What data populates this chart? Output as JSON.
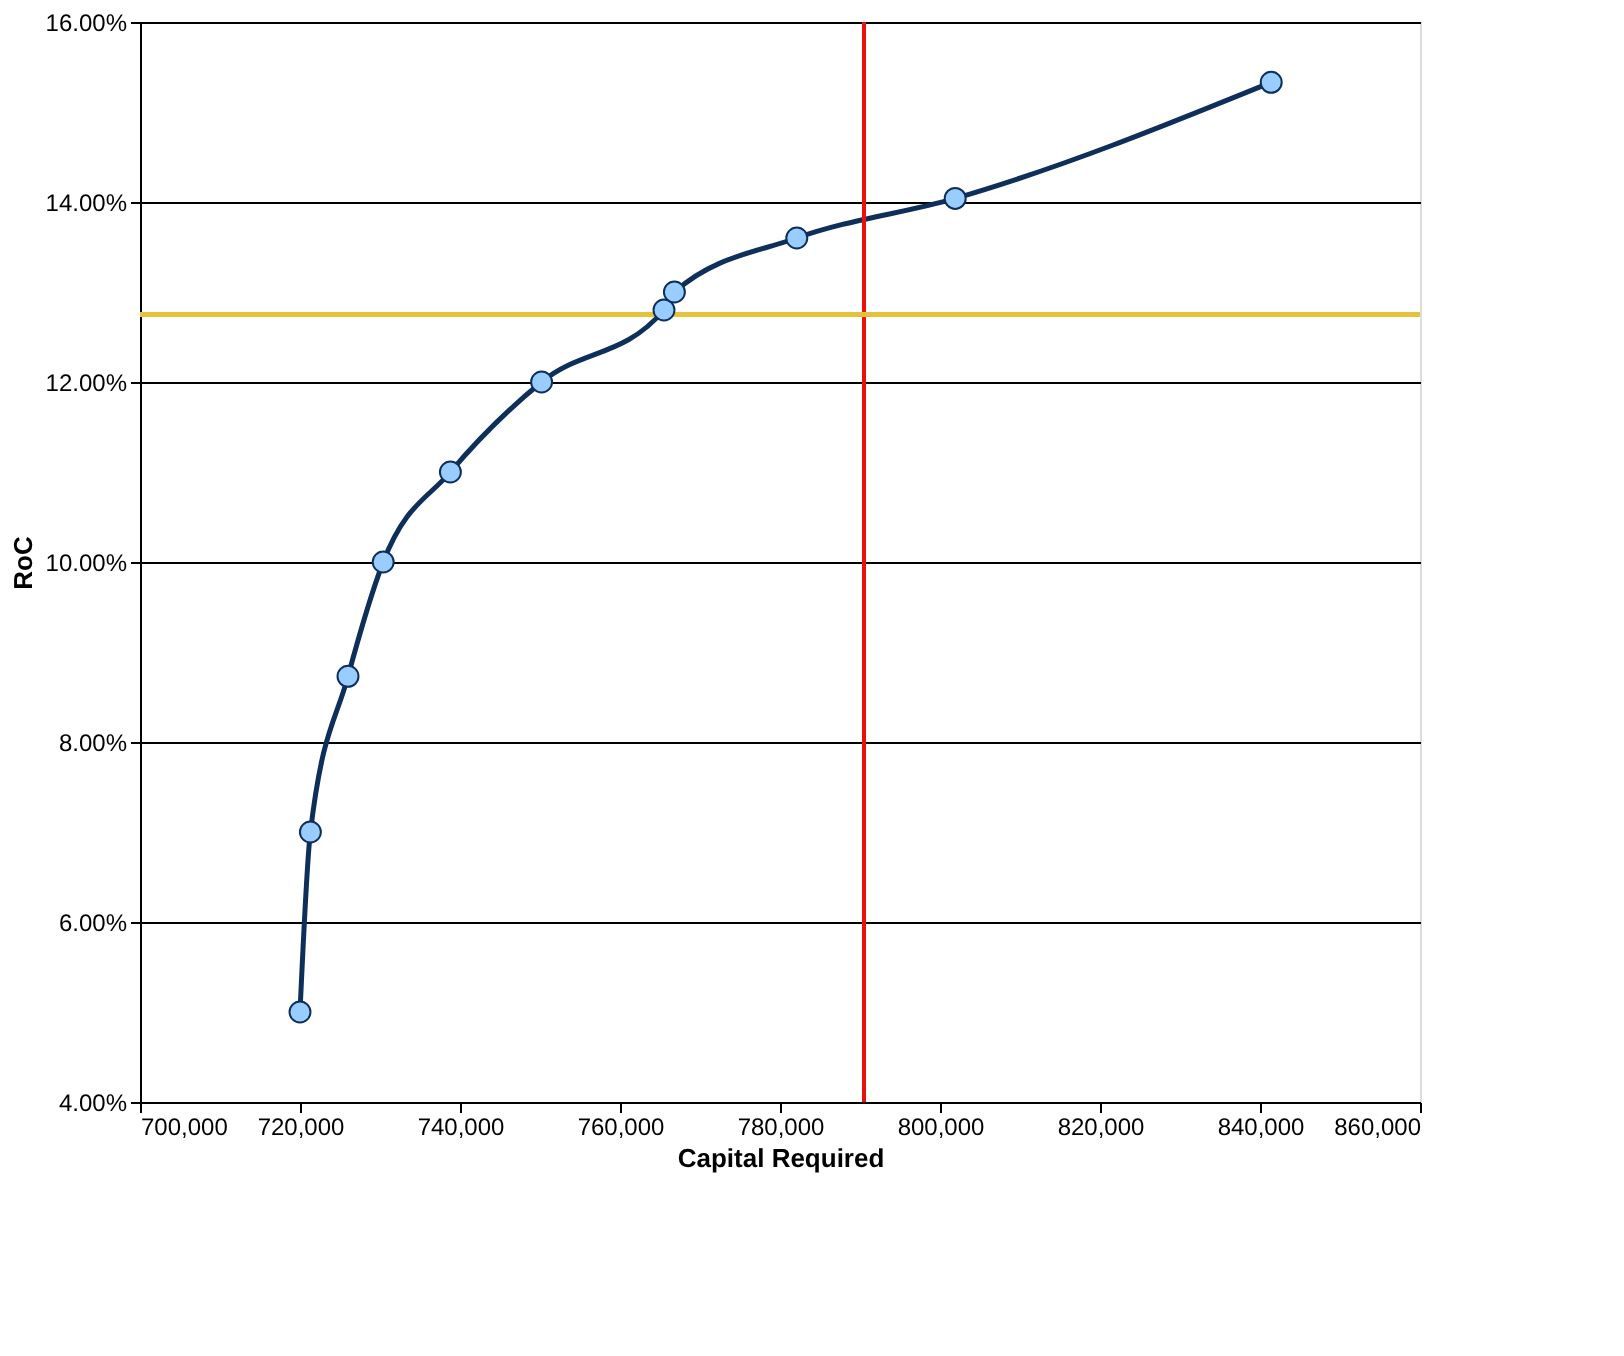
{
  "chart_data": {
    "type": "line",
    "xlabel": "Capital Required",
    "ylabel": "RoC",
    "x": [
      720000,
      721300,
      726000,
      730400,
      738800,
      750200,
      765500,
      766800,
      782100,
      801900,
      841400
    ],
    "series": [
      {
        "color": "#0d2f5a",
        "values": [
          5.0,
          7.0,
          8.73,
          10.0,
          11.0,
          12.0,
          12.8,
          13.0,
          13.6,
          14.04,
          15.33
        ]
      }
    ],
    "marker": "circle",
    "line_style": "solid",
    "grid": "y",
    "xlim": [
      700000,
      860000
    ],
    "xticks": [
      {
        "value": 700000,
        "label": "700,000"
      },
      {
        "value": 720000,
        "label": "720,000"
      },
      {
        "value": 740000,
        "label": "740,000"
      },
      {
        "value": 760000,
        "label": "760,000"
      },
      {
        "value": 780000,
        "label": "780,000"
      },
      {
        "value": 800000,
        "label": "800,000"
      },
      {
        "value": 820000,
        "label": "820,000"
      },
      {
        "value": 840000,
        "label": "840,000"
      },
      {
        "value": 860000,
        "label": "860,000"
      }
    ],
    "ylim": [
      4,
      16
    ],
    "yticks": [
      {
        "value": 4,
        "label": "4.00%"
      },
      {
        "value": 6,
        "label": "6.00%"
      },
      {
        "value": 8,
        "label": "8.00%"
      },
      {
        "value": 10,
        "label": "10.00%"
      },
      {
        "value": 12,
        "label": "12.00%"
      },
      {
        "value": 14,
        "label": "14.00%"
      },
      {
        "value": 16,
        "label": "16.00%"
      }
    ],
    "ref_lines": [
      {
        "axis": "x",
        "value": 790500,
        "color": "#e8120c"
      },
      {
        "axis": "y",
        "value": 12.75,
        "color": "#e6c23a"
      }
    ]
  }
}
